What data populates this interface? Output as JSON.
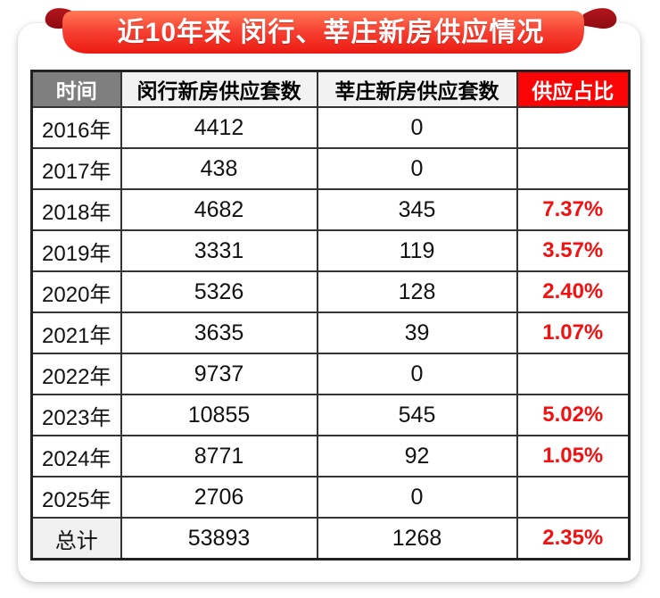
{
  "banner": {
    "title": "近10年来 闵行、莘庄新房供应情况"
  },
  "table": {
    "headers": [
      "时间",
      "闵行新房供应套数",
      "莘庄新房供应套数",
      "供应占比"
    ],
    "rows": [
      {
        "time": "2016年",
        "minhang": "4412",
        "xinzhuang": "0",
        "ratio": ""
      },
      {
        "time": "2017年",
        "minhang": "438",
        "xinzhuang": "0",
        "ratio": ""
      },
      {
        "time": "2018年",
        "minhang": "4682",
        "xinzhuang": "345",
        "ratio": "7.37%"
      },
      {
        "time": "2019年",
        "minhang": "3331",
        "xinzhuang": "119",
        "ratio": "3.57%"
      },
      {
        "time": "2020年",
        "minhang": "5326",
        "xinzhuang": "128",
        "ratio": "2.40%"
      },
      {
        "time": "2021年",
        "minhang": "3635",
        "xinzhuang": "39",
        "ratio": "1.07%"
      },
      {
        "time": "2022年",
        "minhang": "9737",
        "xinzhuang": "0",
        "ratio": ""
      },
      {
        "time": "2023年",
        "minhang": "10855",
        "xinzhuang": "545",
        "ratio": "5.02%"
      },
      {
        "time": "2024年",
        "minhang": "8771",
        "xinzhuang": "92",
        "ratio": "1.05%"
      },
      {
        "time": "2025年",
        "minhang": "2706",
        "xinzhuang": "0",
        "ratio": ""
      },
      {
        "time": "总计",
        "minhang": "53893",
        "xinzhuang": "1268",
        "ratio": "2.35%",
        "is_total": true
      }
    ]
  },
  "colors": {
    "ribbon_top": "#ff7a57",
    "ribbon_mid": "#f74334",
    "ribbon_bottom": "#ec1a12",
    "ribbon_fold_top": "#b5141c",
    "ribbon_fold_bottom": "#8e0c12",
    "header_time_bg": "#7f7f7f",
    "header_plain_bg": "#f2f2f2",
    "header_ratio_bg": "#fa0505",
    "percent_red": "#f21010",
    "cell_border": "#333333",
    "total_label_bg": "#f0f0f0"
  },
  "chart_data": {
    "type": "table",
    "title": "近10年来 闵行、莘庄新房供应情况",
    "columns": [
      "时间",
      "闵行新房供应套数",
      "莘庄新房供应套数",
      "供应占比"
    ],
    "rows": [
      [
        "2016年",
        4412,
        0,
        null
      ],
      [
        "2017年",
        438,
        0,
        null
      ],
      [
        "2018年",
        4682,
        345,
        "7.37%"
      ],
      [
        "2019年",
        3331,
        119,
        "3.57%"
      ],
      [
        "2020年",
        5326,
        128,
        "2.40%"
      ],
      [
        "2021年",
        3635,
        39,
        "1.07%"
      ],
      [
        "2022年",
        9737,
        0,
        null
      ],
      [
        "2023年",
        10855,
        545,
        "5.02%"
      ],
      [
        "2024年",
        8771,
        92,
        "1.05%"
      ],
      [
        "2025年",
        2706,
        0,
        null
      ],
      [
        "总计",
        53893,
        1268,
        "2.35%"
      ]
    ]
  }
}
